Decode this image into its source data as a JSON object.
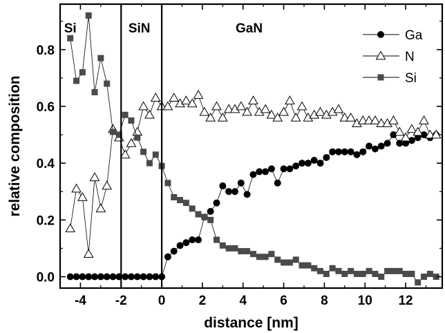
{
  "chart_data": {
    "type": "line",
    "xlabel": "distance [nm]",
    "ylabel": "relative composition",
    "xlim": [
      -5.0,
      13.8
    ],
    "ylim": [
      -0.04,
      0.96
    ],
    "xticks": [
      -4,
      -2,
      0,
      2,
      4,
      6,
      8,
      10,
      12
    ],
    "xtick_labels": [
      "-4",
      "-2",
      "0",
      "2",
      "4",
      "6",
      "8",
      "10",
      "12"
    ],
    "yticks": [
      0.0,
      0.2,
      0.4,
      0.6,
      0.8
    ],
    "ytick_labels": [
      "0.0",
      "0.2",
      "0.4",
      "0.6",
      "0.8"
    ],
    "grid": false,
    "legend_position": "top-right",
    "boundaries": [
      -2.0,
      0.0
    ],
    "regions": [
      {
        "label": "Si",
        "x": -4.5
      },
      {
        "label": "SiN",
        "x": -1.1
      },
      {
        "label": "GaN",
        "x": 4.3
      }
    ],
    "series": [
      {
        "name": "Ga",
        "marker": "filled-circle",
        "x": [
          -4.5,
          -4.2,
          -3.9,
          -3.6,
          -3.3,
          -3.0,
          -2.7,
          -2.4,
          -2.1,
          -1.8,
          -1.5,
          -1.2,
          -0.9,
          -0.6,
          -0.3,
          0.0,
          0.3,
          0.6,
          0.9,
          1.2,
          1.5,
          1.8,
          2.1,
          2.4,
          2.7,
          3.0,
          3.3,
          3.6,
          3.9,
          4.2,
          4.5,
          4.8,
          5.1,
          5.4,
          5.7,
          6.0,
          6.3,
          6.6,
          6.9,
          7.2,
          7.5,
          7.8,
          8.1,
          8.4,
          8.7,
          9.0,
          9.3,
          9.6,
          9.9,
          10.2,
          10.5,
          10.8,
          11.1,
          11.4,
          11.7,
          12.0,
          12.3,
          12.6,
          12.9,
          13.2,
          13.5
        ],
        "values": [
          0.0,
          0.0,
          0.0,
          0.0,
          0.0,
          0.0,
          0.0,
          0.0,
          0.0,
          0.0,
          0.0,
          0.0,
          0.0,
          0.0,
          0.0,
          0.0,
          0.07,
          0.09,
          0.11,
          0.12,
          0.13,
          0.13,
          0.21,
          0.23,
          0.26,
          0.32,
          0.3,
          0.3,
          0.33,
          0.29,
          0.36,
          0.37,
          0.37,
          0.38,
          0.33,
          0.38,
          0.38,
          0.39,
          0.4,
          0.4,
          0.41,
          0.4,
          0.42,
          0.44,
          0.44,
          0.44,
          0.44,
          0.43,
          0.44,
          0.46,
          0.45,
          0.46,
          0.47,
          0.5,
          0.47,
          0.47,
          0.48,
          0.49,
          0.5,
          0.49,
          0.5
        ]
      },
      {
        "name": "N",
        "marker": "open-triangle",
        "x": [
          -4.5,
          -4.2,
          -3.9,
          -3.6,
          -3.3,
          -3.0,
          -2.7,
          -2.4,
          -2.1,
          -1.8,
          -1.5,
          -1.2,
          -0.9,
          -0.6,
          -0.3,
          0.0,
          0.3,
          0.6,
          0.9,
          1.2,
          1.5,
          1.8,
          2.1,
          2.4,
          2.7,
          3.0,
          3.3,
          3.6,
          3.9,
          4.2,
          4.5,
          4.8,
          5.1,
          5.4,
          5.7,
          6.0,
          6.3,
          6.6,
          6.9,
          7.2,
          7.5,
          7.8,
          8.1,
          8.4,
          8.7,
          9.0,
          9.3,
          9.6,
          9.9,
          10.2,
          10.5,
          10.8,
          11.1,
          11.4,
          11.7,
          12.0,
          12.3,
          12.6,
          12.9,
          13.2,
          13.5
        ],
        "values": [
          0.17,
          0.31,
          0.28,
          0.08,
          0.35,
          0.24,
          0.32,
          0.52,
          0.49,
          0.43,
          0.47,
          0.51,
          0.6,
          0.57,
          0.63,
          0.6,
          0.6,
          0.63,
          0.61,
          0.62,
          0.61,
          0.64,
          0.58,
          0.56,
          0.6,
          0.56,
          0.59,
          0.59,
          0.6,
          0.58,
          0.62,
          0.58,
          0.59,
          0.57,
          0.56,
          0.58,
          0.62,
          0.56,
          0.6,
          0.56,
          0.57,
          0.58,
          0.57,
          0.58,
          0.59,
          0.56,
          0.56,
          0.54,
          0.55,
          0.55,
          0.55,
          0.54,
          0.54,
          0.55,
          0.51,
          0.49,
          0.52,
          0.51,
          0.55,
          0.5,
          0.5
        ]
      },
      {
        "name": "Si",
        "marker": "filled-square",
        "x": [
          -4.5,
          -4.2,
          -3.9,
          -3.6,
          -3.3,
          -3.0,
          -2.7,
          -2.4,
          -2.1,
          -1.8,
          -1.5,
          -1.2,
          -0.9,
          -0.6,
          -0.3,
          0.0,
          0.3,
          0.6,
          0.9,
          1.2,
          1.5,
          1.8,
          2.1,
          2.4,
          2.7,
          3.0,
          3.3,
          3.6,
          3.9,
          4.2,
          4.5,
          4.8,
          5.1,
          5.4,
          5.7,
          6.0,
          6.3,
          6.6,
          6.9,
          7.2,
          7.5,
          7.8,
          8.1,
          8.4,
          8.7,
          9.0,
          9.3,
          9.6,
          9.9,
          10.2,
          10.5,
          10.8,
          11.1,
          11.4,
          11.7,
          12.0,
          12.3,
          12.6,
          12.9,
          13.2,
          13.5
        ],
        "values": [
          0.84,
          0.69,
          0.72,
          0.92,
          0.65,
          0.77,
          0.68,
          0.51,
          0.5,
          0.57,
          0.55,
          0.49,
          0.44,
          0.4,
          0.43,
          0.39,
          0.33,
          0.28,
          0.27,
          0.26,
          0.24,
          0.22,
          0.21,
          0.2,
          0.13,
          0.11,
          0.1,
          0.1,
          0.09,
          0.09,
          0.08,
          0.07,
          0.07,
          0.08,
          0.06,
          0.05,
          0.05,
          0.06,
          0.04,
          0.04,
          0.03,
          0.02,
          0.01,
          0.03,
          0.02,
          0.01,
          0.02,
          0.01,
          0.01,
          0.02,
          0.01,
          0.0,
          0.02,
          0.02,
          0.02,
          0.01,
          0.01,
          -0.02,
          0.0,
          0.01,
          0.0
        ]
      }
    ]
  }
}
